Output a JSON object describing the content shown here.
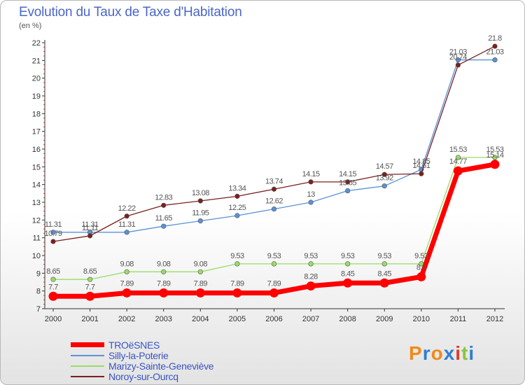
{
  "chart_data": {
    "type": "line",
    "title": "Evolution du Taux de Taxe d'Habitation",
    "subtitle": "(en %)",
    "x": [
      "2000",
      "2001",
      "2002",
      "2003",
      "2004",
      "2005",
      "2006",
      "2007",
      "2008",
      "2009",
      "2010",
      "2011",
      "2012"
    ],
    "yticks": [
      "7",
      "8",
      "9",
      "10",
      "11",
      "12",
      "13",
      "14",
      "15",
      "16",
      "17",
      "18",
      "19",
      "20",
      "21",
      "22"
    ],
    "ylim": [
      7,
      22
    ],
    "grid": false,
    "legend_position": "bottom-left",
    "series": [
      {
        "name": "TROëSNES",
        "color": "#ff0000",
        "values": [
          7.7,
          7.7,
          7.89,
          7.89,
          7.89,
          7.89,
          7.89,
          8.28,
          8.45,
          8.45,
          8.8,
          14.77,
          15.14
        ],
        "labels": [
          "7.7",
          "7.7",
          "7.89",
          "7.89",
          "7.89",
          "7.89",
          "7.89",
          "8.28",
          "8.45",
          "8.45",
          "8.8",
          "14.77",
          "15.14"
        ]
      },
      {
        "name": "Silly-la-Poterie",
        "color": "#5b92d6",
        "values": [
          11.31,
          11.31,
          11.31,
          11.65,
          11.95,
          12.25,
          12.62,
          13,
          13.65,
          13.92,
          14.85,
          21.03,
          21.03
        ],
        "labels": [
          "11.31",
          "11.31",
          "11.31",
          "11.65",
          "11.95",
          "12.25",
          "12.62",
          "13",
          "13.65",
          "13.92",
          "14.85",
          "21.03",
          "21.03"
        ]
      },
      {
        "name": "Marizy-Sainte-Geneviève",
        "color": "#99dd66",
        "values": [
          8.65,
          8.65,
          9.08,
          9.08,
          9.08,
          9.53,
          9.53,
          9.53,
          9.53,
          9.53,
          9.53,
          15.53,
          15.53
        ],
        "labels": [
          "8.65",
          "8.65",
          "9.08",
          "9.08",
          "9.08",
          "9.53",
          "9.53",
          "9.53",
          "9.53",
          "9.53",
          "9.53",
          "15.53",
          "15.53"
        ]
      },
      {
        "name": "Noroy-sur-Ourcq",
        "color": "#7a2020",
        "values": [
          10.79,
          11.11,
          12.22,
          12.83,
          13.08,
          13.34,
          13.74,
          14.15,
          14.15,
          14.57,
          14.61,
          20.74,
          21.8
        ],
        "labels": [
          "10.79",
          "11.11",
          "12.22",
          "12.83",
          "13.08",
          "13.34",
          "13.74",
          "14.15",
          "14.15",
          "14.57",
          "14.61",
          "20.74",
          "21.8"
        ]
      }
    ]
  },
  "logo": {
    "letters": [
      "P",
      "r",
      "o",
      "x",
      "i",
      "t",
      "i"
    ],
    "colors": [
      "#f08a1c",
      "#2f7fd0",
      "#f08a1c",
      "#2f7fd0",
      "#e03a2b",
      "#8bc53f",
      "#2f7fd0"
    ]
  }
}
